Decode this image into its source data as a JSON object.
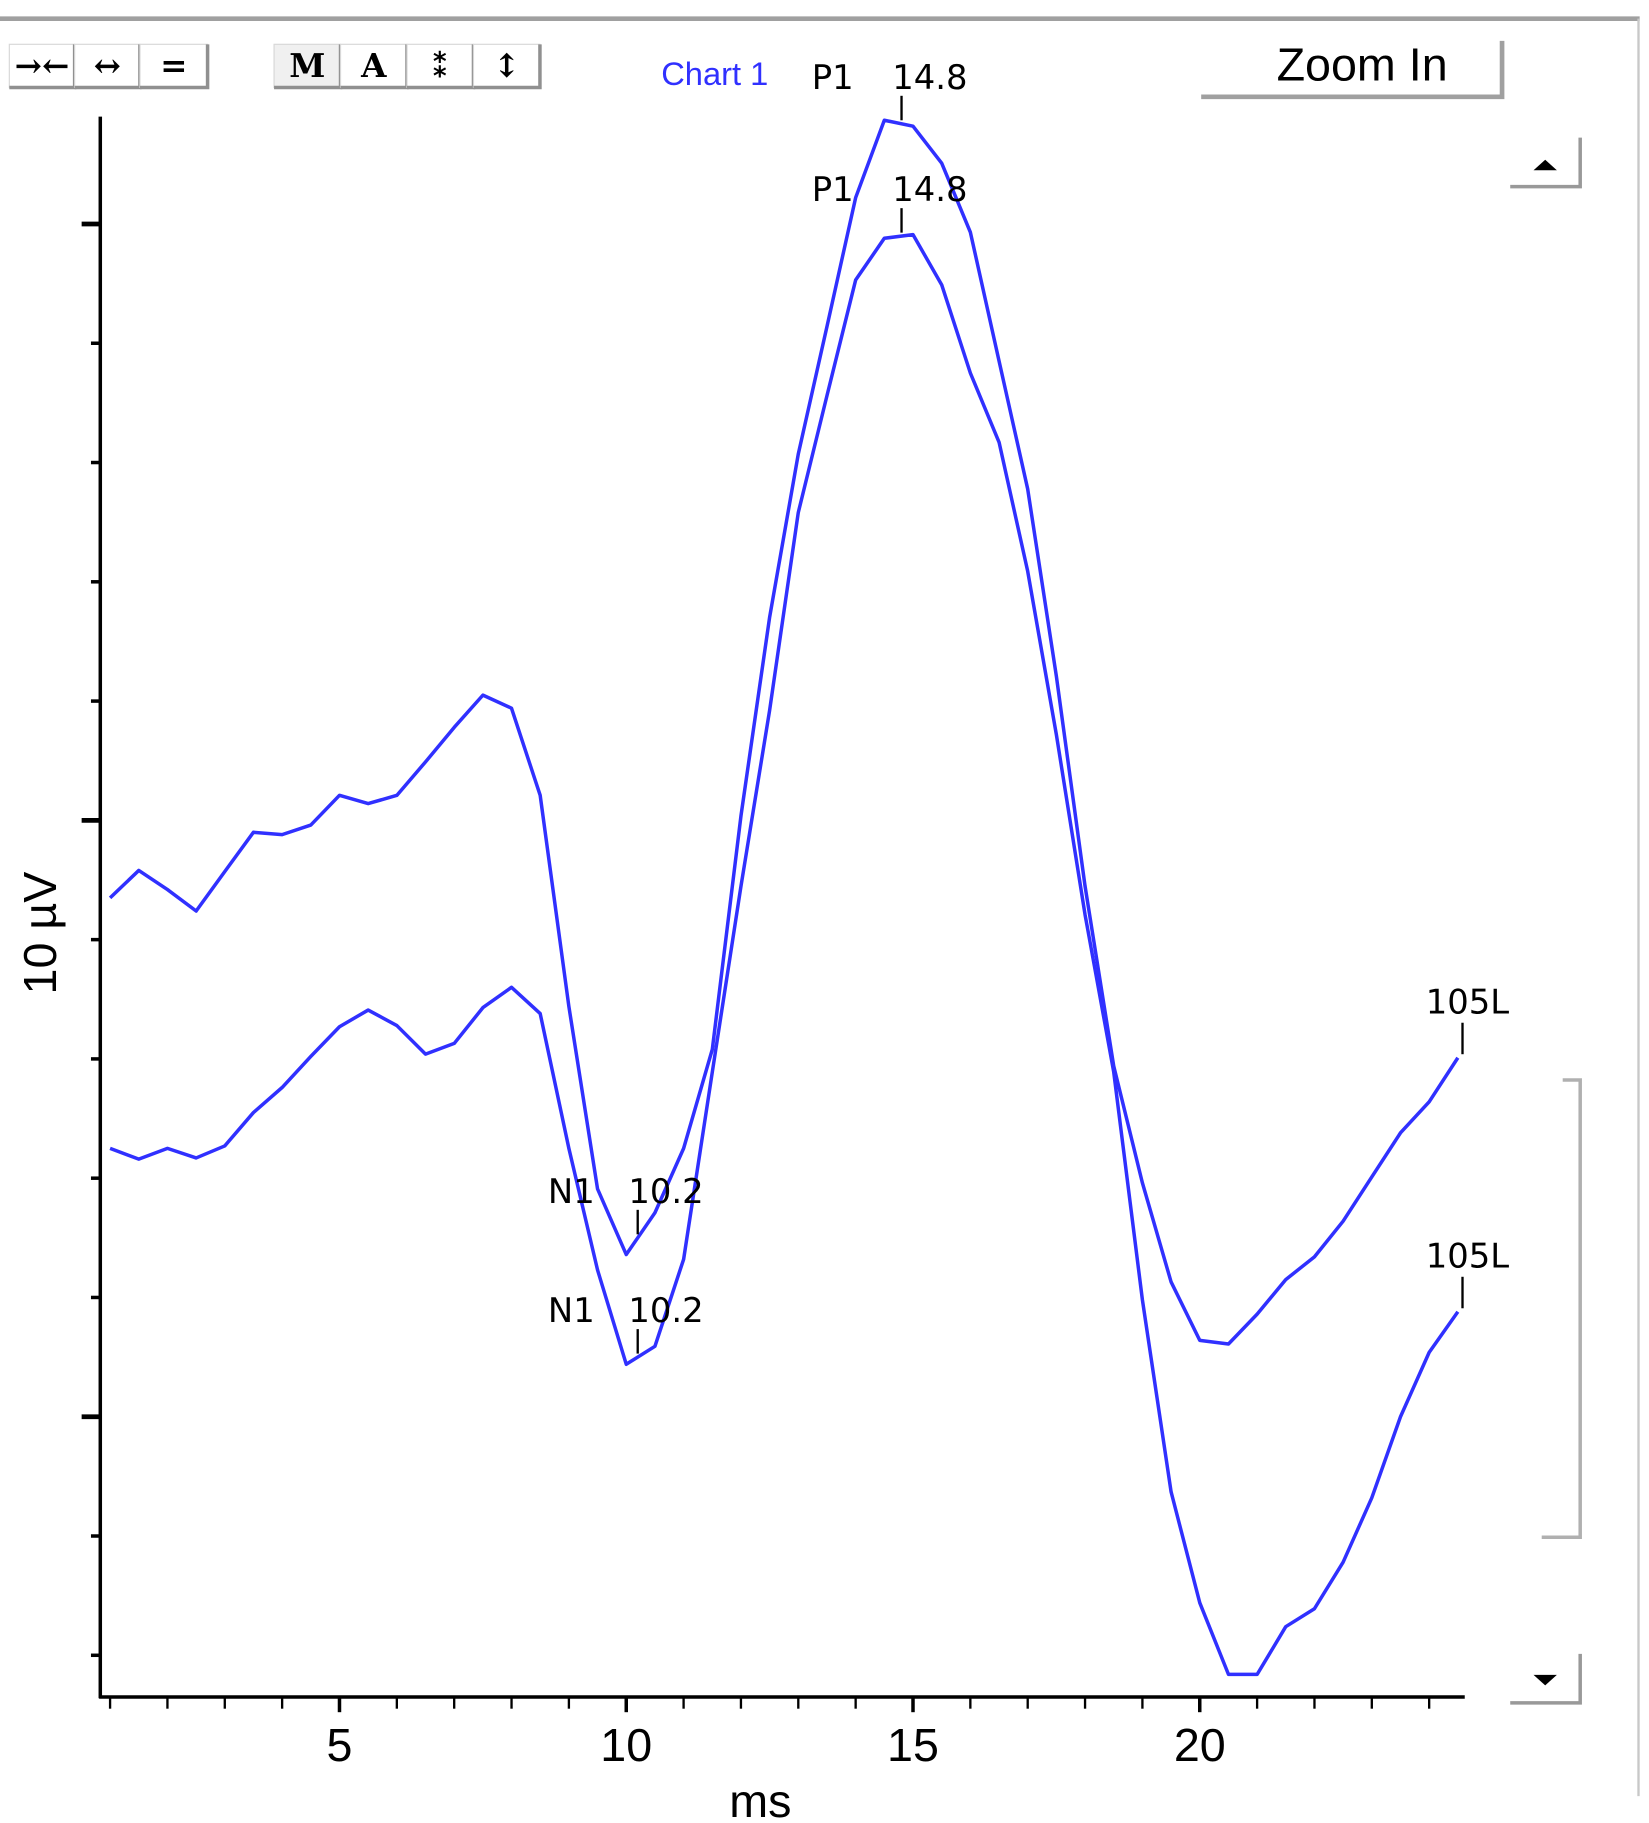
{
  "chart_data": {
    "type": "line",
    "legend": "Chart 1",
    "ylabel": "10 µV",
    "xlabel": "ms",
    "zoom_button": "Zoom In",
    "toolbar": [
      "→←",
      "↔",
      "=",
      "M",
      "A",
      "⁑",
      "↕"
    ],
    "xlim": [
      0.87,
      24.6
    ],
    "xticks": [
      5,
      10,
      15,
      20
    ],
    "xticks_minor": [
      1,
      2,
      3,
      4,
      5,
      6,
      7,
      8,
      9,
      10,
      11,
      12,
      13,
      14,
      15,
      16,
      17,
      18,
      19,
      20,
      21,
      22,
      23,
      24
    ],
    "ylim": [
      -0.35,
      12.9
    ],
    "yticks": [
      0,
      1,
      2,
      3,
      4,
      5,
      6,
      7,
      8,
      9,
      10,
      11,
      12
    ],
    "yticks_major": [
      2,
      7,
      12
    ],
    "x": [
      1,
      1.5,
      2,
      2.5,
      3,
      3.5,
      4,
      4.5,
      5,
      5.5,
      6,
      6.5,
      7,
      7.5,
      8,
      8.5,
      9,
      9.5,
      10,
      10.5,
      11,
      11.5,
      12,
      12.5,
      13,
      13.5,
      14,
      14.5,
      15,
      15.5,
      16,
      16.5,
      17,
      17.5,
      18,
      18.5,
      19,
      19.5,
      20,
      20.5,
      21,
      21.5,
      22,
      22.5,
      23,
      23.5,
      24,
      24.5
    ],
    "series": [
      {
        "color": "#3030ff",
        "values": [
          6.35,
          6.58,
          6.42,
          6.24,
          6.57,
          6.9,
          6.88,
          6.96,
          7.21,
          7.14,
          7.21,
          7.49,
          7.78,
          8.05,
          7.94,
          7.21,
          5.44,
          3.91,
          3.36,
          3.71,
          4.25,
          5.08,
          7.04,
          8.7,
          10.07,
          11.14,
          12.22,
          12.87,
          12.82,
          12.51,
          11.93,
          10.85,
          9.78,
          8.21,
          6.45,
          4.94,
          3.96,
          3.13,
          2.64,
          2.61,
          2.86,
          3.15,
          3.34,
          3.64,
          4.01,
          4.38,
          4.64,
          5.01
        ]
      },
      {
        "color": "#3030ff",
        "values": [
          4.25,
          4.16,
          4.25,
          4.17,
          4.27,
          4.55,
          4.76,
          5.02,
          5.27,
          5.41,
          5.28,
          5.04,
          5.13,
          5.43,
          5.6,
          5.38,
          4.25,
          3.23,
          2.44,
          2.59,
          3.32,
          4.89,
          6.45,
          7.92,
          9.58,
          10.56,
          11.53,
          11.88,
          11.91,
          11.49,
          10.75,
          10.17,
          9.09,
          7.72,
          6.21,
          4.89,
          2.98,
          1.37,
          0.44,
          -0.16,
          -0.16,
          0.24,
          0.39,
          0.78,
          1.32,
          2.0,
          2.54,
          2.88
        ]
      }
    ],
    "annotations": [
      {
        "series": 0,
        "label": "P1",
        "x": 14.8
      },
      {
        "series": 1,
        "label": "P1",
        "x": 14.8
      },
      {
        "series": 0,
        "label": "N1",
        "x": 10.2
      },
      {
        "series": 1,
        "label": "N1",
        "x": 10.2
      },
      {
        "series": 0,
        "label": "105L"
      },
      {
        "series": 1,
        "label": "105L"
      }
    ]
  }
}
